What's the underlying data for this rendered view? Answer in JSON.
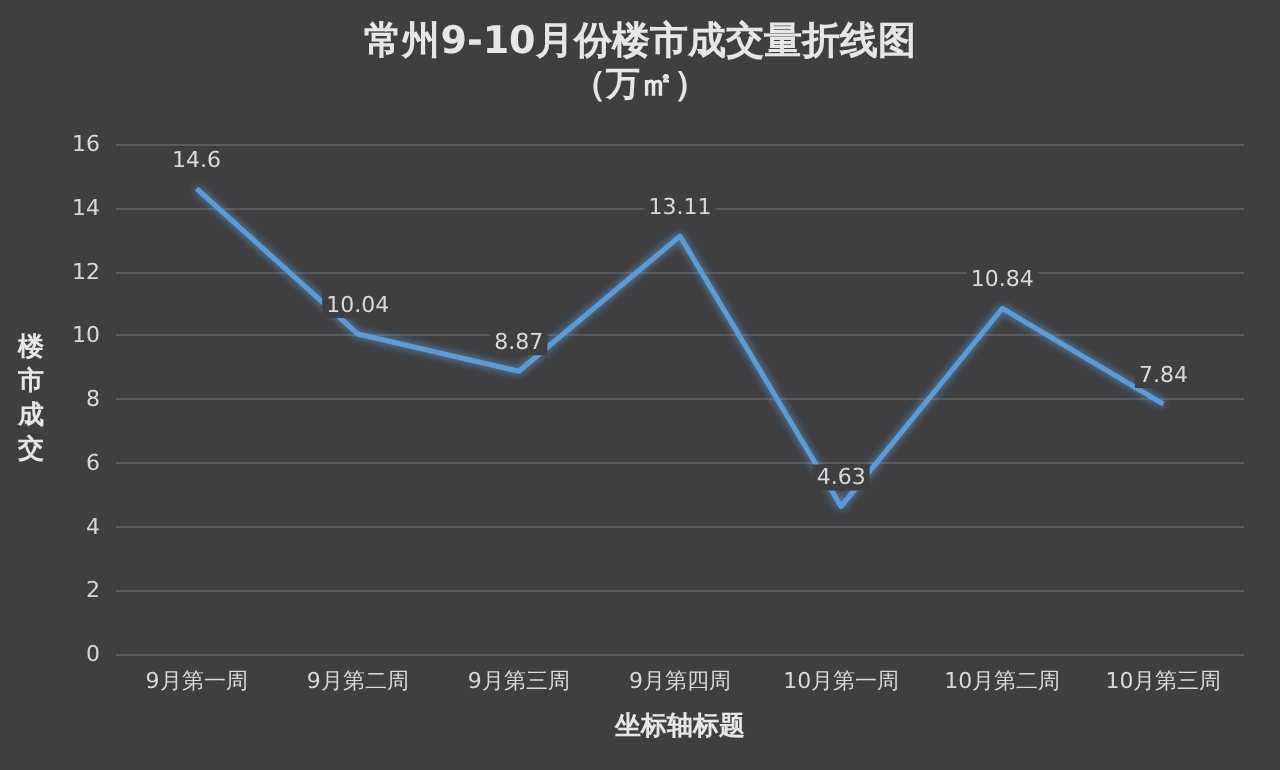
{
  "chart_data": {
    "type": "line",
    "title": "常州9-10月份楼市成交量折线图",
    "subtitle": "（万㎡）",
    "xlabel": "坐标轴标题",
    "ylabel": "楼市成交",
    "categories": [
      "9月第一周",
      "9月第二周",
      "9月第三周",
      "9月第四周",
      "10月第一周",
      "10月第二周",
      "10月第三周"
    ],
    "series": [
      {
        "color": "#5b9bd5",
        "values": [
          14.6,
          10.04,
          8.87,
          13.11,
          4.63,
          10.84,
          7.84
        ]
      }
    ],
    "ylim": [
      0,
      16
    ],
    "yticks": [
      0,
      2,
      4,
      6,
      8,
      10,
      12,
      14,
      16
    ],
    "grid": "y",
    "data_labels": true,
    "marker": "none",
    "line_style": "solid"
  }
}
